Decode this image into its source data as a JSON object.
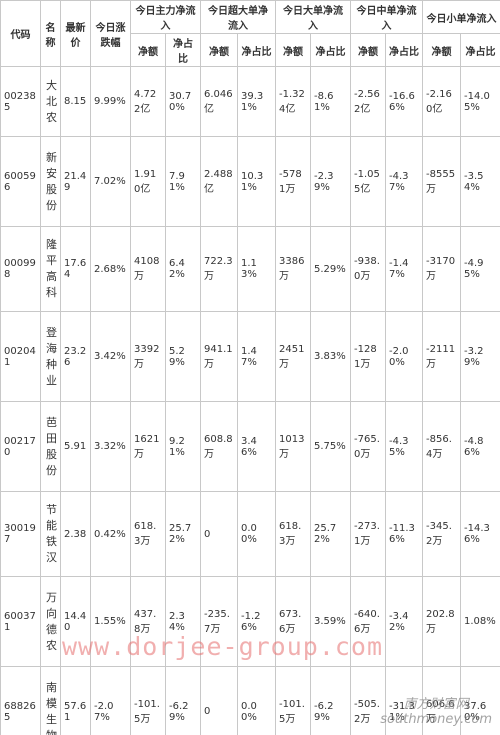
{
  "table": {
    "columns": [
      "代码",
      "名称",
      "最新价",
      "今日涨跌幅",
      "今日主力净流入",
      "今日超大单净流入",
      "今日大单净流入",
      "今日中单净流入",
      "今日小单净流入"
    ],
    "subcolumns": [
      "净额",
      "净占比",
      "净额",
      "净占比",
      "净额",
      "净占比",
      "净额",
      "净占比",
      "净额",
      "净占比"
    ],
    "rows": [
      [
        "002385",
        "大北农",
        "8.15",
        "9.99%",
        "4.722亿",
        "30.70%",
        "6.046亿",
        "39.31%",
        "-1.324亿",
        "-8.61%",
        "-2.562亿",
        "-16.66%",
        "-2.160亿",
        "-14.05%"
      ],
      [
        "600596",
        "新安股份",
        "21.49",
        "7.02%",
        "1.910亿",
        "7.91%",
        "2.488亿",
        "10.31%",
        "-5781万",
        "-2.39%",
        "-1.055亿",
        "-4.37%",
        "-8555万",
        "-3.54%"
      ],
      [
        "000998",
        "隆平高科",
        "17.64",
        "2.68%",
        "4108万",
        "6.42%",
        "722.3万",
        "1.13%",
        "3386万",
        "5.29%",
        "-938.0万",
        "-1.47%",
        "-3170万",
        "-4.95%"
      ],
      [
        "002041",
        "登海种业",
        "23.26",
        "3.42%",
        "3392万",
        "5.29%",
        "941.1万",
        "1.47%",
        "2451万",
        "3.83%",
        "-1281万",
        "-2.00%",
        "-2111万",
        "-3.29%"
      ],
      [
        "002170",
        "芭田股份",
        "5.91",
        "3.32%",
        "1621万",
        "9.21%",
        "608.8万",
        "3.46%",
        "1013万",
        "5.75%",
        "-765.0万",
        "-4.35%",
        "-856.4万",
        "-4.86%"
      ],
      [
        "300197",
        "节能铁汉",
        "2.38",
        "0.42%",
        "618.3万",
        "25.72%",
        "0",
        "0.00%",
        "618.3万",
        "25.72%",
        "-273.1万",
        "-11.36%",
        "-345.2万",
        "-14.36%"
      ],
      [
        "600371",
        "万向德农",
        "14.40",
        "1.55%",
        "437.8万",
        "2.34%",
        "-235.7万",
        "-1.26%",
        "673.6万",
        "3.59%",
        "-640.6万",
        "-3.42%",
        "202.8万",
        "1.08%"
      ],
      [
        "688265",
        "南模生物",
        "57.61",
        "-2.07%",
        "-101.5万",
        "-6.29%",
        "0",
        "0.00%",
        "-101.5万",
        "-6.29%",
        "-505.2万",
        "-31.31%",
        "606.6万",
        "37.60%"
      ]
    ]
  },
  "watermarks": {
    "site": "www.dorjee-group.com",
    "brand": "南方财富网",
    "brand_url": "southmoney.com"
  }
}
